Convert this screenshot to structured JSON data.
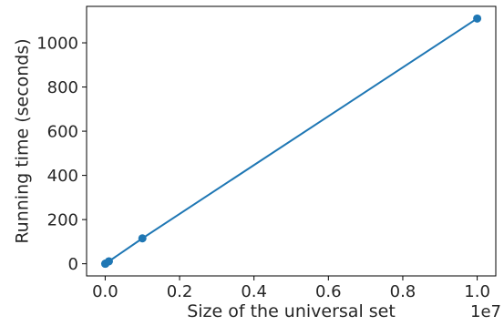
{
  "chart_data": {
    "type": "line",
    "xlabel": "Size of the universal set",
    "ylabel": "Running time (seconds)",
    "x_offset_label": "1e7",
    "x_scale": 10000000,
    "xlim": [
      -500000,
      10500000
    ],
    "ylim": [
      -55,
      1165
    ],
    "x_ticks": [
      0,
      2000000,
      4000000,
      6000000,
      8000000,
      10000000
    ],
    "x_tick_labels": [
      "0.0",
      "0.2",
      "0.4",
      "0.6",
      "0.8",
      "1.0"
    ],
    "y_ticks": [
      0,
      200,
      400,
      600,
      800,
      1000
    ],
    "y_tick_labels": [
      "0",
      "200",
      "400",
      "600",
      "800",
      "1000"
    ],
    "grid": false,
    "legend": false,
    "series": [
      {
        "color": "#1f77b4",
        "marker": "circle",
        "x": [
          1000,
          10000,
          100000,
          1000000,
          10000000
        ],
        "y": [
          0.1,
          1.1,
          11,
          115,
          1110
        ]
      }
    ]
  }
}
